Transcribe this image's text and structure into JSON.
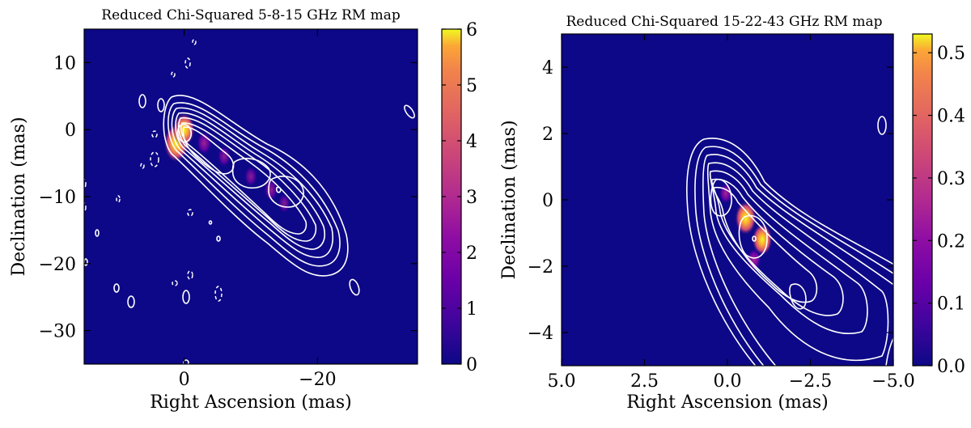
{
  "chart_data": [
    {
      "type": "heatmap",
      "title": "Reduced Chi-Squared 5-8-15 GHz RM map",
      "xlabel": "Right Ascension (mas)",
      "ylabel": "Declination (mas)",
      "xlim": [
        15,
        -35
      ],
      "ylim": [
        -35,
        15
      ],
      "xticks": [
        0,
        -20
      ],
      "xticklabels": [
        "0",
        "−20"
      ],
      "yticks": [
        10,
        0,
        -10,
        -20,
        -30
      ],
      "yticklabels": [
        "10",
        "0",
        "−10",
        "−20",
        "−30"
      ],
      "colorbar": {
        "min": 0,
        "max": 6,
        "ticks": [
          0,
          1,
          2,
          3,
          4,
          5,
          6
        ],
        "ticklabels": [
          "0",
          "1",
          "2",
          "3",
          "4",
          "5",
          "6"
        ],
        "colormap": "plasma"
      },
      "background_color": "#0d0887",
      "hotspots": [
        {
          "x": 1.2,
          "y": -2.0,
          "value": 5.8
        },
        {
          "x": 0.0,
          "y": 0.0,
          "value": 4.6
        },
        {
          "x": -3.0,
          "y": -2.0,
          "value": 2.2
        },
        {
          "x": -6.0,
          "y": -4.0,
          "value": 1.6
        },
        {
          "x": -10.0,
          "y": -7.0,
          "value": 1.4
        },
        {
          "x": -13.0,
          "y": -9.0,
          "value": 1.8
        },
        {
          "x": -15.0,
          "y": -11.0,
          "value": 1.2
        }
      ]
    },
    {
      "type": "heatmap",
      "title": "Reduced Chi-Squared 15-22-43 GHz RM map",
      "xlabel": "Right Ascension (mas)",
      "ylabel": "Declination (mas)",
      "xlim": [
        5,
        -5
      ],
      "ylim": [
        -5,
        5
      ],
      "xticks": [
        5,
        2.5,
        0,
        -2.5,
        -5
      ],
      "xticklabels": [
        "5.0",
        "2.5",
        "0.0",
        "−2.5",
        "−5.0"
      ],
      "yticks": [
        4,
        2,
        0,
        -2,
        -4
      ],
      "yticklabels": [
        "4",
        "2",
        "0",
        "−2",
        "−4"
      ],
      "colorbar": {
        "min": 0,
        "max": 0.53,
        "ticks": [
          0,
          0.1,
          0.2,
          0.3,
          0.4,
          0.5
        ],
        "ticklabels": [
          "0.0",
          "0.1",
          "0.2",
          "0.3",
          "0.4",
          "0.5"
        ],
        "colormap": "plasma"
      },
      "background_color": "#0d0887",
      "hotspots": [
        {
          "x": -0.55,
          "y": -0.55,
          "value": 0.53
        },
        {
          "x": -1.05,
          "y": -1.2,
          "value": 0.48
        },
        {
          "x": 0.05,
          "y": 0.2,
          "value": 0.22
        },
        {
          "x": -0.8,
          "y": -1.8,
          "value": 0.25
        }
      ]
    }
  ]
}
